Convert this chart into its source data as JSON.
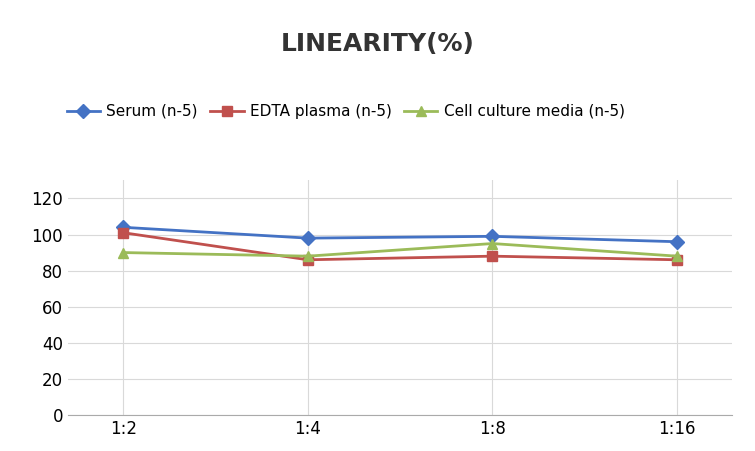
{
  "title": "LINEARITY(%)",
  "x_labels": [
    "1:2",
    "1:4",
    "1:8",
    "1:16"
  ],
  "series": [
    {
      "label": "Serum (n‑5)",
      "values": [
        104,
        98,
        99,
        96
      ],
      "color": "#4472C4",
      "marker": "D"
    },
    {
      "label": "EDTA plasma (n‑5)",
      "values": [
        101,
        86,
        88,
        86
      ],
      "color": "#C0504D",
      "marker": "s"
    },
    {
      "label": "Cell culture media (n‑5)",
      "values": [
        90,
        88,
        95,
        88
      ],
      "color": "#9BBB59",
      "marker": "^"
    }
  ],
  "ylim": [
    0,
    130
  ],
  "yticks": [
    0,
    20,
    40,
    60,
    80,
    100,
    120
  ],
  "background_color": "#ffffff",
  "title_fontsize": 18,
  "legend_fontsize": 11,
  "tick_fontsize": 12,
  "grid_color": "#d9d9d9"
}
